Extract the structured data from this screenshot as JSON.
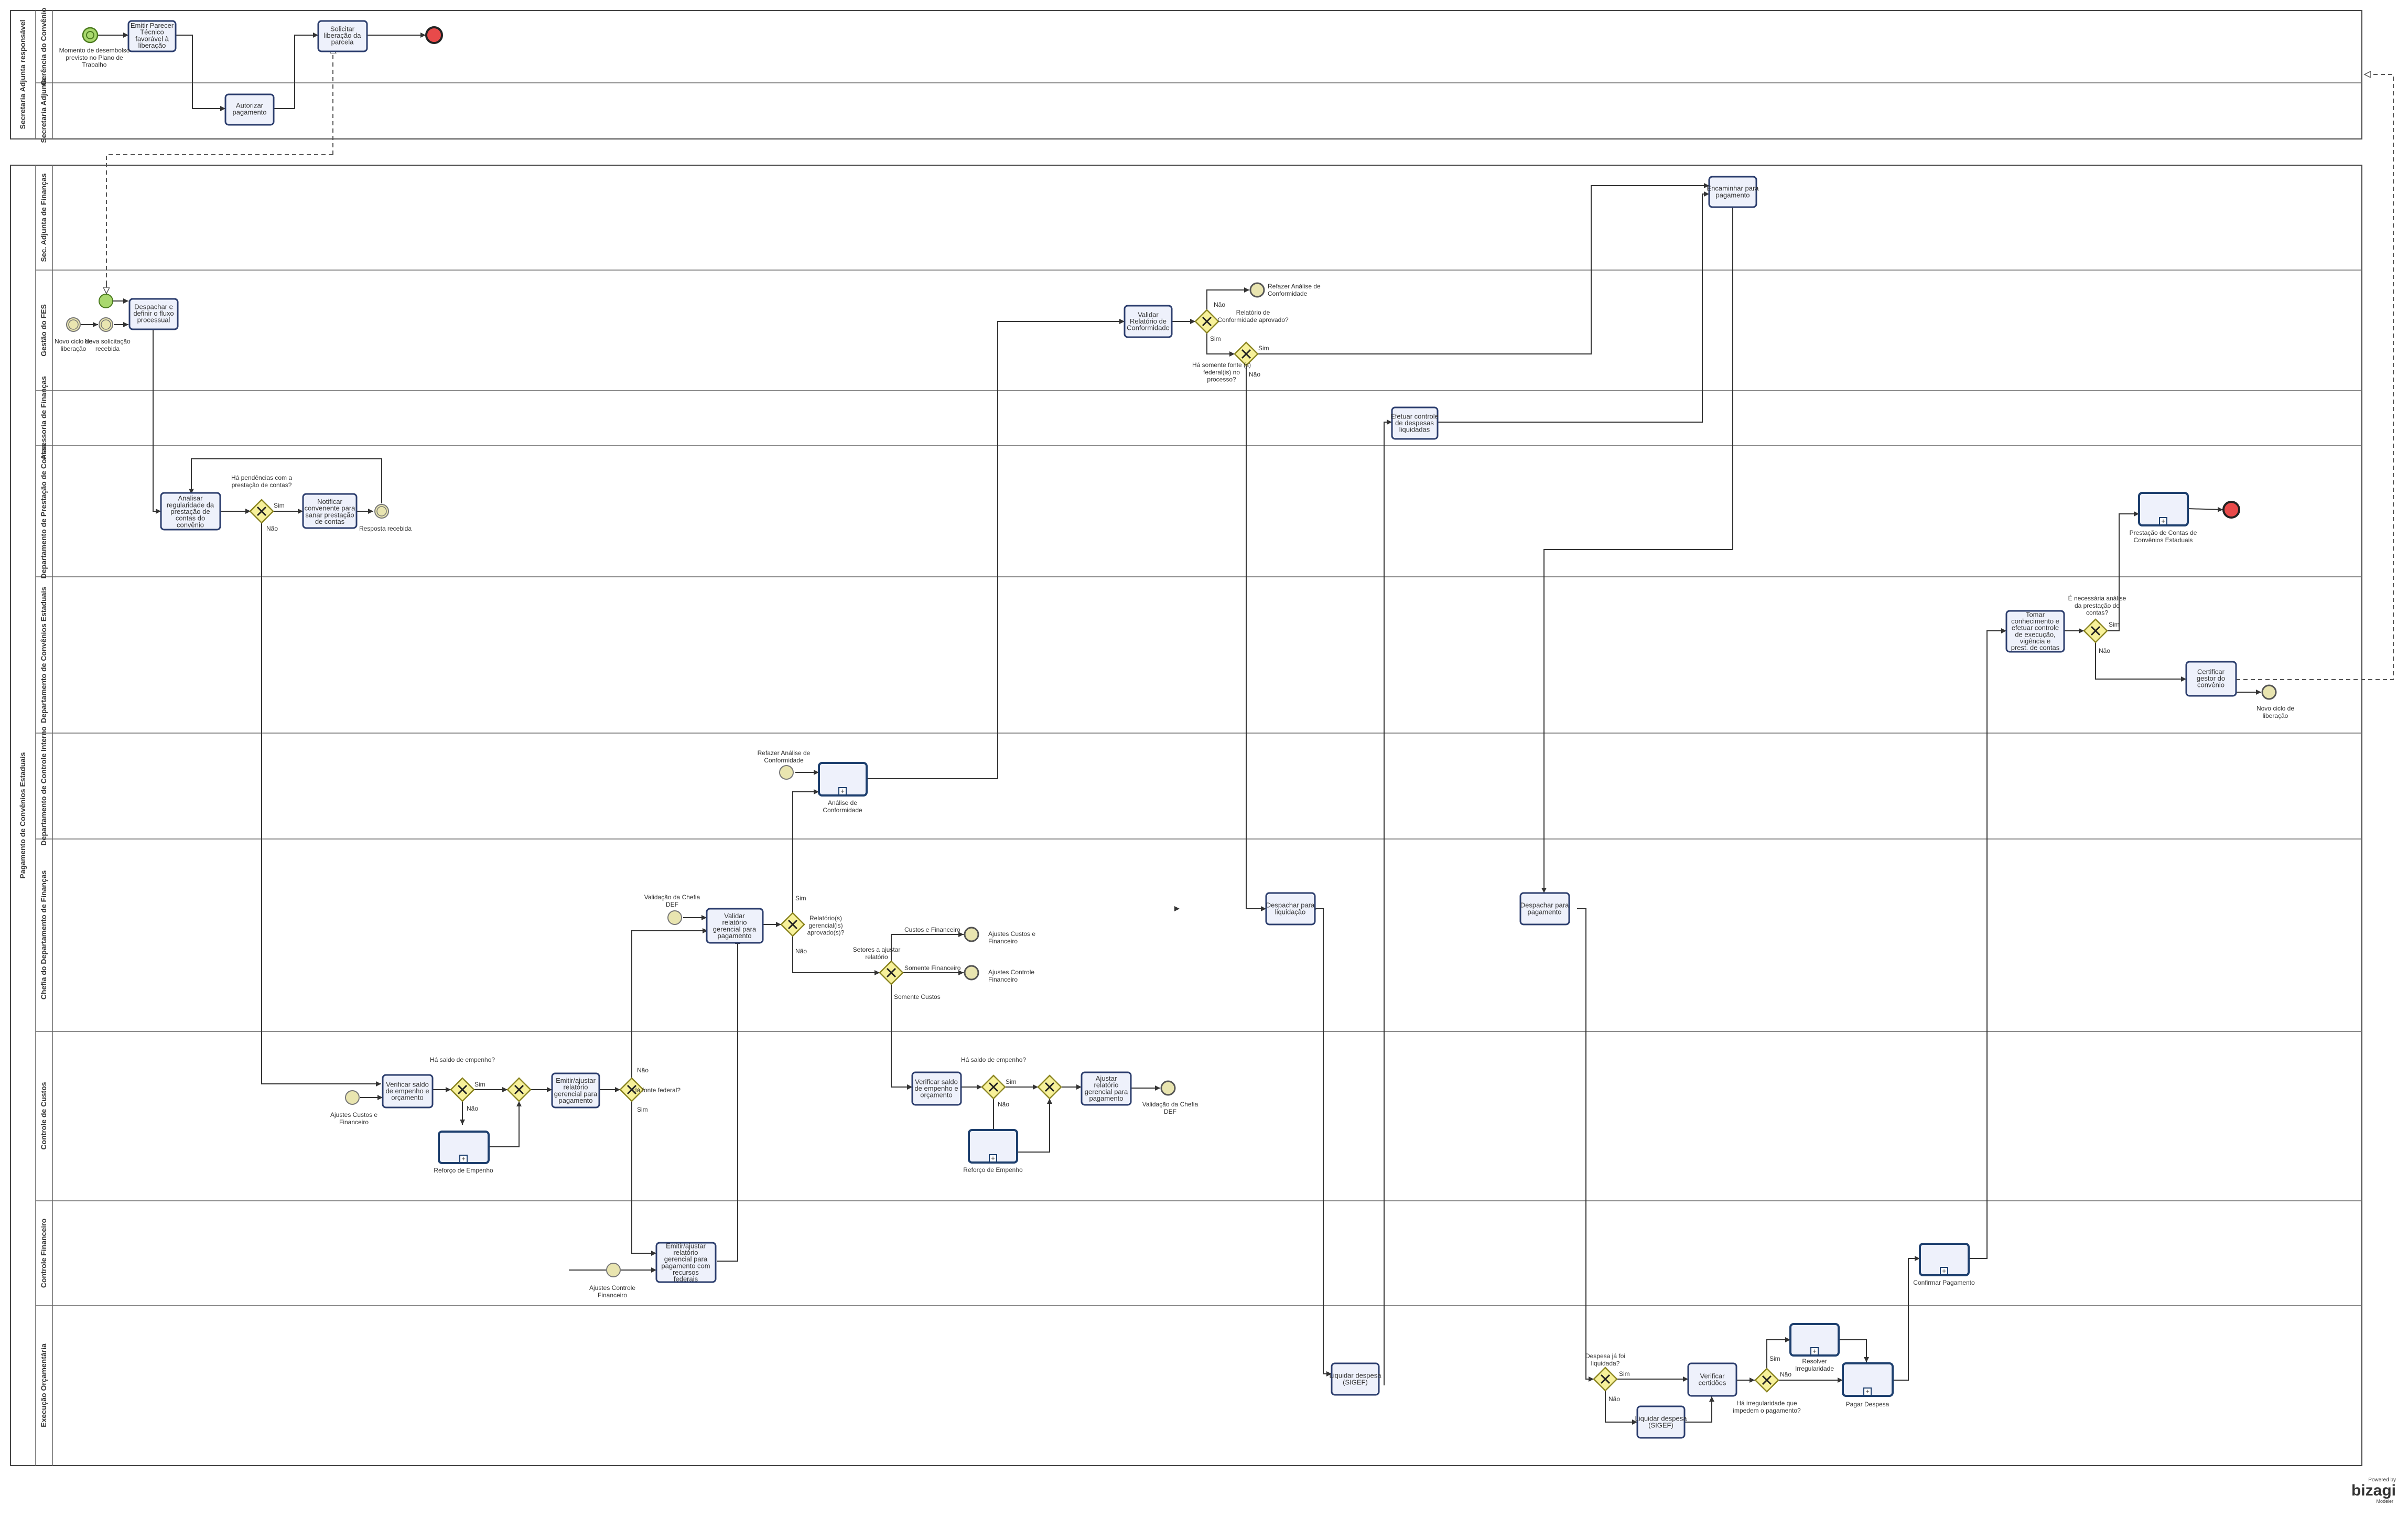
{
  "pools": [
    {
      "name": "Secretaria Adjunta responsável",
      "lanes": [
        "Gerência do Convênio",
        "Secretaria Adjunta"
      ]
    },
    {
      "name": "Pagamento de Convênios Estaduais",
      "lanes": [
        "Sec. Adjunta de Finanças",
        "Gestão do FES",
        "Assessoria de Finanças",
        "Departamento de Prestação de Contas",
        "Departamento de Convênios Estaduais",
        "Departamento de Controle Interno",
        "Chefia do Departamento de Finanças",
        "Controle de Custos",
        "Controle Financeiro",
        "Execução Orçamentária"
      ]
    }
  ],
  "tasks": {
    "t1": "Emitir Parecer Técnico favorável à liberação",
    "t2": "Solicitar liberação da parcela",
    "t3": "Autorizar pagamento",
    "t4": "Encaminhar para pagamento",
    "t5": "Despachar e definir o fluxo processual",
    "t6": "Validar Relatório de Conformidade",
    "t7": "Efetuar controle de despesas liquidadas",
    "t8": "Analisar regularidade da prestação de contas do convênio",
    "t9": "Notificar convenente para sanar prestação de contas",
    "t10": "Tomar conhecimento e efetuar controle de execução, vigência e prest. de contas",
    "t11": "Certificar gestor do convênio",
    "t12": "Validar relatório gerencial para pagamento",
    "t13": "Despachar para liquidação",
    "t14": "Despachar para pagamento",
    "t15": "Verificar saldo de empenho e orçamento",
    "t16": "Emitir/ajustar relatório gerencial para pagamento",
    "t17": "Verificar saldo de empenho e orçamento",
    "t18": "Ajustar relatório gerencial para pagamento",
    "t19": "Emitir/ajustar relatório gerencial para pagamento com recursos federais",
    "t20": "Liquidar despesa (SIGEF)",
    "t21": "Verificar certidões",
    "t22": "Liquidar despesa (SIGEF)"
  },
  "subprocesses": {
    "s1": "Prestação de Contas de Convênios Estaduais",
    "s2": "Análise de Conformidade",
    "s3": "Reforço de Empenho",
    "s4": "Reforço de Empenho",
    "s5": "Confirmar Pagamento",
    "s6": "Resolver Irregularidade",
    "s7": "Pagar Despesa"
  },
  "events": {
    "e1": "Momento de desembolso previsto no Plano de Trabalho",
    "e2": "Novo ciclo de liberação",
    "e3": "Nova solicitação recebida",
    "e4": "Refazer Análise de Conformidade",
    "e5": "Resposta recebida",
    "e6": "Novo ciclo de liberação",
    "e7": "Refazer Análise de Conformidade",
    "e8": "Validação da Chefia DEF",
    "e9": "Ajustes Custos e Financeiro",
    "e10": "Ajustes Controle Financeiro",
    "e11": "Ajustes Custos e Financeiro",
    "e12": "Validação da Chefia DEF",
    "e13": "Ajustes Controle Financeiro"
  },
  "gateways": {
    "g1": "Relatório de Conformidade aprovado?",
    "g2": "Há somente fonte (s) federal(is) no processo?",
    "g3": "Há pendências com a prestação de contas?",
    "g4": "É necessária análise da prestação de contas?",
    "g5": "Relatório(s) gerencial(is) aprovado(s)?",
    "g6": "Setores a ajustar relatório",
    "g7": "Há saldo de empenho?",
    "g9": "Há fonte federal?",
    "g10": "Há saldo de empenho?",
    "g12": "Despesa já foi liquidada?",
    "g13": "Há irregularidade que impedem o pagamento?"
  },
  "flow_labels": {
    "sim": "Sim",
    "nao": "Não",
    "custos_fin": "Custos e Financeiro",
    "somente_fin": "Somente Financeiro",
    "somente_custos": "Somente Custos"
  },
  "brand": {
    "powered": "Powered by",
    "name": "bizagi",
    "sub": "Modeler"
  },
  "colors": {
    "task_fill": "#eef1fb",
    "task_stroke": "#2c3e6e",
    "gateway": "#f7f19a",
    "start": "#a9d86e",
    "end": "#e84a4a",
    "intermediate": "#e9e5b0"
  }
}
